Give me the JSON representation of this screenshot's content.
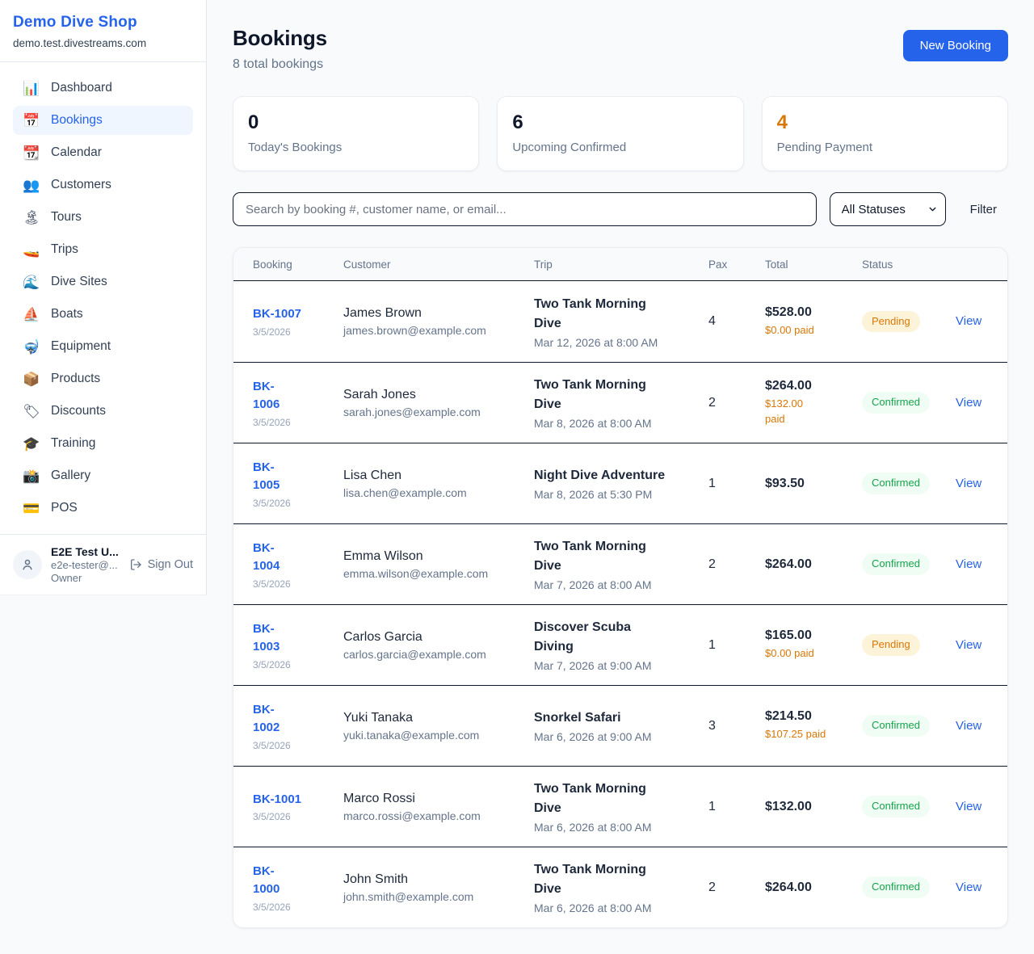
{
  "brand": {
    "name": "Demo Dive Shop",
    "domain": "demo.test.divestreams.com"
  },
  "sidebar": {
    "nav": [
      {
        "key": "dashboard",
        "icon": "📊",
        "label": "Dashboard",
        "active": false
      },
      {
        "key": "bookings",
        "icon": "📅",
        "label": "Bookings",
        "active": true
      },
      {
        "key": "calendar",
        "icon": "📆",
        "label": "Calendar",
        "active": false
      },
      {
        "key": "customers",
        "icon": "👥",
        "label": "Customers",
        "active": false
      },
      {
        "key": "tours",
        "icon": "🏝",
        "label": "Tours",
        "active": false
      },
      {
        "key": "trips",
        "icon": "🚤",
        "label": "Trips",
        "active": false
      },
      {
        "key": "dive-sites",
        "icon": "🌊",
        "label": "Dive Sites",
        "active": false
      },
      {
        "key": "boats",
        "icon": "⛵",
        "label": "Boats",
        "active": false
      },
      {
        "key": "equipment",
        "icon": "🤿",
        "label": "Equipment",
        "active": false
      },
      {
        "key": "products",
        "icon": "📦",
        "label": "Products",
        "active": false
      },
      {
        "key": "discounts",
        "icon": "🏷",
        "label": "Discounts",
        "active": false
      },
      {
        "key": "training",
        "icon": "🎓",
        "label": "Training",
        "active": false
      },
      {
        "key": "gallery",
        "icon": "📸",
        "label": "Gallery",
        "active": false
      },
      {
        "key": "pos",
        "icon": "💳",
        "label": "POS",
        "active": false
      }
    ],
    "user": {
      "name": "E2E Test U...",
      "email": "e2e-tester@...",
      "role": "Owner",
      "sign_out_label": "Sign Out"
    }
  },
  "header": {
    "title": "Bookings",
    "subtitle": "8 total bookings",
    "new_booking_label": "New Booking"
  },
  "stats": [
    {
      "key": "todays-bookings",
      "value": "0",
      "label": "Today's Bookings",
      "value_color": "#0f172a"
    },
    {
      "key": "upcoming-confirmed",
      "value": "6",
      "label": "Upcoming Confirmed",
      "value_color": "#0f172a"
    },
    {
      "key": "pending-payment",
      "value": "4",
      "label": "Pending Payment",
      "value_color": "#d97706"
    }
  ],
  "filters": {
    "search_placeholder": "Search by booking #, customer name, or email...",
    "status_selected": "All Statuses",
    "filter_label": "Filter"
  },
  "table": {
    "columns": [
      "Booking",
      "Customer",
      "Trip",
      "Pax",
      "Total",
      "Status"
    ],
    "view_label": "View",
    "rows": [
      {
        "id": "BK-1007",
        "id_two_line": false,
        "date": "3/5/2026",
        "customer": "James Brown",
        "email": "james.brown@example.com",
        "trip": "Two Tank Morning Dive",
        "trip_time": "Mar 12, 2026 at 8:00 AM",
        "pax": "4",
        "total": "$528.00",
        "paid": "$0.00 paid",
        "paid_two_line": false,
        "status": "Pending"
      },
      {
        "id": "BK-1006",
        "id_two_line": true,
        "date": "3/5/2026",
        "customer": "Sarah Jones",
        "email": "sarah.jones@example.com",
        "trip": "Two Tank Morning Dive",
        "trip_time": "Mar 8, 2026 at 8:00 AM",
        "pax": "2",
        "total": "$264.00",
        "paid": "$132.00 paid",
        "paid_two_line": true,
        "status": "Confirmed"
      },
      {
        "id": "BK-1005",
        "id_two_line": true,
        "date": "3/5/2026",
        "customer": "Lisa Chen",
        "email": "lisa.chen@example.com",
        "trip": "Night Dive Adventure",
        "trip_time": "Mar 8, 2026 at 5:30 PM",
        "pax": "1",
        "total": "$93.50",
        "paid": "",
        "paid_two_line": false,
        "status": "Confirmed"
      },
      {
        "id": "BK-1004",
        "id_two_line": true,
        "date": "3/5/2026",
        "customer": "Emma Wilson",
        "email": "emma.wilson@example.com",
        "trip": "Two Tank Morning Dive",
        "trip_time": "Mar 7, 2026 at 8:00 AM",
        "pax": "2",
        "total": "$264.00",
        "paid": "",
        "paid_two_line": false,
        "status": "Confirmed"
      },
      {
        "id": "BK-1003",
        "id_two_line": true,
        "date": "3/5/2026",
        "customer": "Carlos Garcia",
        "email": "carlos.garcia@example.com",
        "trip": "Discover Scuba Diving",
        "trip_time": "Mar 7, 2026 at 9:00 AM",
        "pax": "1",
        "total": "$165.00",
        "paid": "$0.00 paid",
        "paid_two_line": false,
        "status": "Pending"
      },
      {
        "id": "BK-1002",
        "id_two_line": true,
        "date": "3/5/2026",
        "customer": "Yuki Tanaka",
        "email": "yuki.tanaka@example.com",
        "trip": "Snorkel Safari",
        "trip_time": "Mar 6, 2026 at 9:00 AM",
        "pax": "3",
        "total": "$214.50",
        "paid": "$107.25 paid",
        "paid_two_line": false,
        "status": "Confirmed"
      },
      {
        "id": "BK-1001",
        "id_two_line": false,
        "date": "3/5/2026",
        "customer": "Marco Rossi",
        "email": "marco.rossi@example.com",
        "trip": "Two Tank Morning Dive",
        "trip_time": "Mar 6, 2026 at 8:00 AM",
        "pax": "1",
        "total": "$132.00",
        "paid": "",
        "paid_two_line": false,
        "status": "Confirmed"
      },
      {
        "id": "BK-1000",
        "id_two_line": true,
        "date": "3/5/2026",
        "customer": "John Smith",
        "email": "john.smith@example.com",
        "trip": "Two Tank Morning Dive",
        "trip_time": "Mar 6, 2026 at 8:00 AM",
        "pax": "2",
        "total": "$264.00",
        "paid": "",
        "paid_two_line": false,
        "status": "Confirmed"
      }
    ]
  },
  "colors": {
    "accent": "#2563eb",
    "pending_text": "#d97706",
    "pending_bg": "#fdf3d8",
    "confirmed_text": "#16a34a",
    "confirmed_bg": "#f0fdf4",
    "paid_text": "#d97706"
  }
}
